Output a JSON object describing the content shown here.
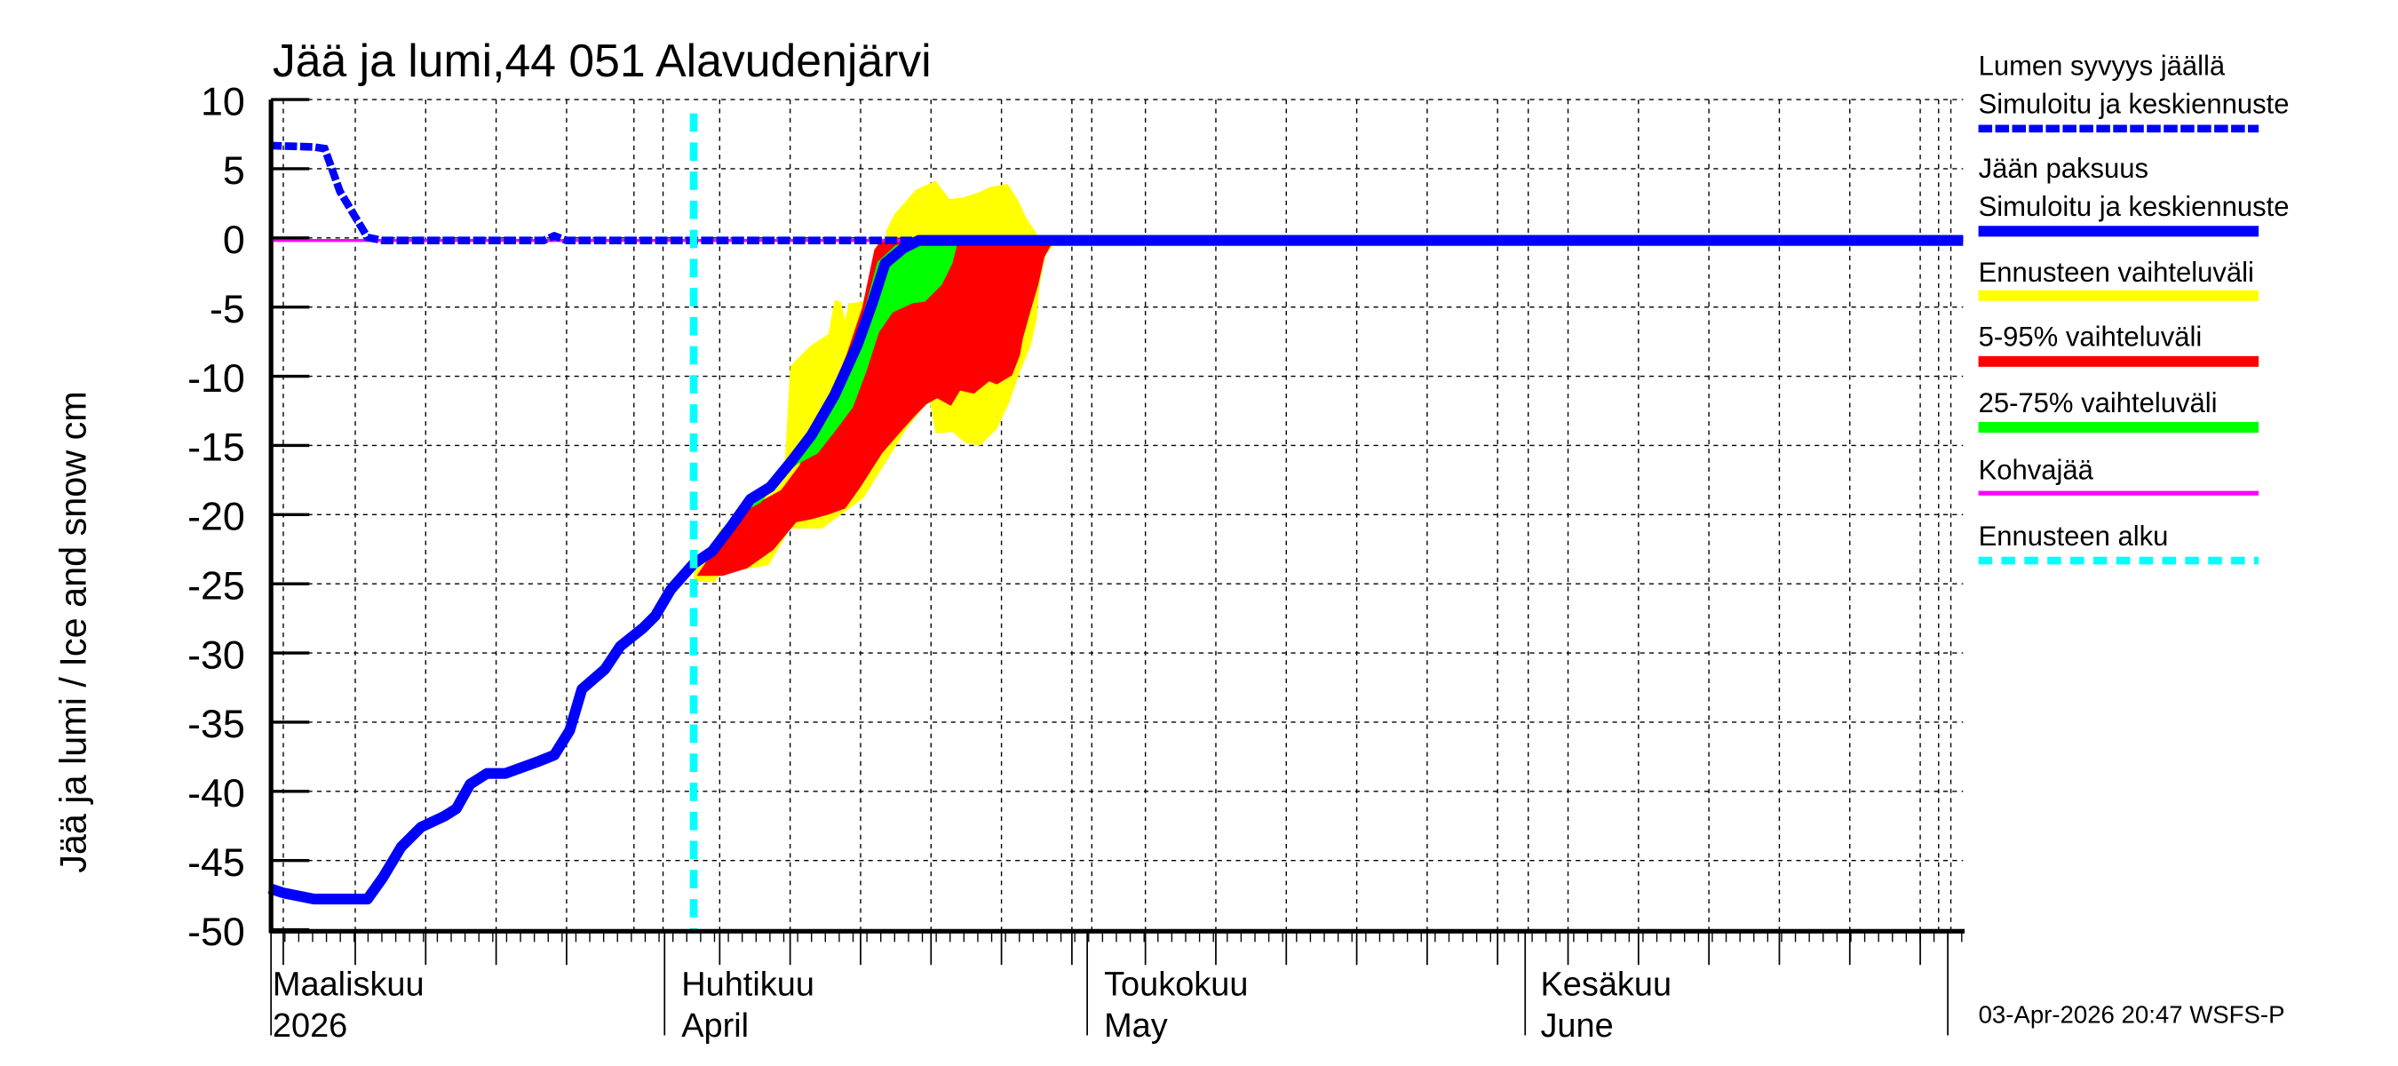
{
  "chart_data": {
    "type": "area",
    "title": "Jää ja lumi,44 051 Alavudenjärvi",
    "xlabel": "",
    "ylabel": "Jää ja lumi / Ice and snow    cm",
    "ylim": [
      -50,
      10
    ],
    "yticks": [
      10,
      5,
      0,
      -5,
      -10,
      -15,
      -20,
      -25,
      -30,
      -35,
      -40,
      -45,
      -50
    ],
    "grid": true,
    "legend_position": "right",
    "x_month_labels": [
      {
        "fi": "Maaliskuu",
        "en": "2026",
        "date": "2026-03-01"
      },
      {
        "fi": "Huhtikuu",
        "en": "April",
        "date": "2026-04-01"
      },
      {
        "fi": "Toukokuu",
        "en": "May",
        "date": "2026-05-01"
      },
      {
        "fi": "Kesäkuu",
        "en": "June",
        "date": "2026-06-01"
      }
    ],
    "forecast_start": "2026-04-03",
    "series": [
      {
        "name": "Lumen syvyys jäällä – Simuloitu ja keskiennuste",
        "style": "dashed",
        "color": "#0000ff",
        "x": [
          "03-01",
          "03-04",
          "03-05",
          "03-06",
          "03-08",
          "03-09",
          "03-22",
          "03-23",
          "03-24",
          "07-01"
        ],
        "values": [
          7.0,
          7.0,
          6.8,
          3.5,
          0.2,
          0,
          0,
          0.2,
          0,
          0
        ]
      },
      {
        "name": "Jään paksuus – Simuloitu ja keskiennuste",
        "style": "solid",
        "color": "#0000ff",
        "x": [
          "03-01",
          "03-02",
          "03-04",
          "03-08",
          "03-09",
          "03-10",
          "03-12",
          "03-14",
          "03-16",
          "03-17",
          "03-18",
          "03-20",
          "03-22",
          "03-23",
          "03-24",
          "03-25",
          "03-27",
          "03-28",
          "03-30",
          "03-31",
          "04-01",
          "04-03",
          "04-04",
          "04-06",
          "04-07",
          "04-09",
          "04-10",
          "04-12",
          "04-13",
          "04-15",
          "04-16",
          "04-17",
          "04-18",
          "04-19",
          "07-01"
        ],
        "values": [
          -47.0,
          -47.5,
          -48.0,
          -48.0,
          -46.5,
          -44.0,
          -42.5,
          -41.5,
          -41.0,
          -39.0,
          -38.5,
          -38.5,
          -37.5,
          -37.0,
          -35.5,
          -32.5,
          -31.0,
          -29.5,
          -28.0,
          -27.0,
          -25.0,
          -23.0,
          -22.5,
          -20.5,
          -19.0,
          -18.0,
          -16.5,
          -14.5,
          -12.0,
          -8.5,
          -5.0,
          -2.0,
          -0.8,
          -0.3,
          0
        ]
      },
      {
        "name": "Ennusteen vaihteluväli",
        "color": "#ffff00",
        "kind": "band",
        "x": [
          "04-03",
          "04-05",
          "04-08",
          "04-11",
          "04-14",
          "04-17",
          "04-18",
          "04-20",
          "04-21",
          "04-22",
          "04-24",
          "04-26",
          "04-28",
          "04-30"
        ],
        "upper": [
          -22.8,
          -21.0,
          -17.0,
          -14.5,
          -8.5,
          0,
          0,
          3.2,
          1.2,
          1.5,
          2.2,
          2.8,
          0.5,
          -1.5
        ],
        "lower": [
          -23.5,
          -23.5,
          -22.5,
          -19.5,
          -19.5,
          -15.5,
          -12.0,
          -11.0,
          -13.5,
          -13.5,
          -11.0,
          -8.0,
          -4.5,
          -1.5
        ]
      },
      {
        "name": "5-95% vaihteluväli",
        "color": "#ff0000",
        "kind": "band",
        "x": [
          "04-03",
          "04-05",
          "04-08",
          "04-11",
          "04-14",
          "04-17",
          "04-19",
          "04-22",
          "04-24",
          "04-26",
          "04-28",
          "04-30"
        ],
        "upper": [
          -22.9,
          -21.5,
          -18.0,
          -15.0,
          -9.5,
          -0.8,
          0,
          0,
          0,
          0,
          0,
          -1.0
        ],
        "lower": [
          -23.3,
          -22.5,
          -20.5,
          -19.0,
          -14.0,
          -10.5,
          -10.0,
          -9.0,
          -8.0,
          -6.5,
          -3.0,
          -1.0
        ]
      },
      {
        "name": "25-75% vaihteluväli",
        "color": "#00ff00",
        "kind": "band",
        "x": [
          "04-07",
          "04-10",
          "04-13",
          "04-16",
          "04-18",
          "04-20",
          "04-22",
          "04-23"
        ],
        "upper": [
          -18.5,
          -16.0,
          -11.5,
          -3.5,
          -0.5,
          0,
          0,
          0
        ],
        "lower": [
          -19.5,
          -17.5,
          -15.0,
          -8.0,
          -5.0,
          -4.5,
          -2.5,
          0
        ]
      },
      {
        "name": "Kohvajää",
        "color": "#ff00ff",
        "style": "solid",
        "x": [
          "03-01",
          "07-01"
        ],
        "values": [
          0,
          0
        ]
      },
      {
        "name": "Ennusteen alku",
        "color": "#00ffff",
        "style": "dashed-vertical",
        "x": [
          "04-03"
        ]
      }
    ]
  },
  "legend": {
    "items": [
      {
        "line1": "Lumen syvyys jäällä",
        "line2": "Simuloitu ja keskiennuste",
        "color": "#0000ff",
        "style": "dashed"
      },
      {
        "line1": "Jään paksuus",
        "line2": "Simuloitu ja keskiennuste",
        "color": "#0000ff",
        "style": "solid"
      },
      {
        "line1": "Ennusteen vaihteluväli",
        "color": "#ffff00",
        "style": "solid"
      },
      {
        "line1": "5-95% vaihteluväli",
        "color": "#ff0000",
        "style": "solid"
      },
      {
        "line1": "25-75% vaihteluväli",
        "color": "#00ff00",
        "style": "solid"
      },
      {
        "line1": "Kohvajää",
        "color": "#ff00ff",
        "style": "thin"
      },
      {
        "line1": "Ennusteen alku",
        "color": "#00ffff",
        "style": "dotted"
      }
    ]
  },
  "footer": {
    "timestamp": "03-Apr-2026 20:47 WSFS-P"
  }
}
